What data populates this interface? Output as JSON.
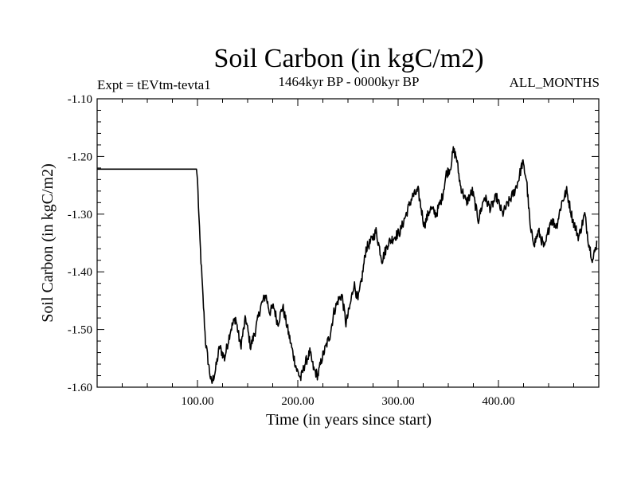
{
  "chart_data": {
    "type": "line",
    "title": "Soil Carbon (in kgC/m2)",
    "experiment": "Expt = tEVtm-tevta1",
    "period": "1464kyr BP - 0000kyr BP",
    "season": "ALL_MONTHS",
    "xlabel": "Time (in years since start)",
    "ylabel": "Soil Carbon (in kgC/m2)",
    "xlim": [
      0,
      500
    ],
    "ylim": [
      -1.6,
      -1.1
    ],
    "xticks_major": [
      100,
      200,
      300,
      400
    ],
    "xtick_labels": [
      "100.00",
      "200.00",
      "300.00",
      "400.00"
    ],
    "yticks_major": [
      -1.6,
      -1.5,
      -1.4,
      -1.3,
      -1.2,
      -1.1
    ],
    "ytick_labels": [
      "-1.60",
      "-1.50",
      "-1.40",
      "-1.30",
      "-1.20",
      "-1.10"
    ],
    "grid": false,
    "series": [
      {
        "name": "Soil Carbon",
        "color": "#000000",
        "x": [
          0,
          99,
          100,
          102,
          105,
          108,
          111,
          114,
          118,
          122,
          127,
          133,
          138,
          143,
          148,
          153,
          158,
          163,
          168,
          172,
          176,
          180,
          185,
          190,
          195,
          199,
          203,
          207,
          212,
          216,
          220,
          224,
          228,
          232,
          236,
          240,
          244,
          248,
          252,
          256,
          260,
          264,
          268,
          272,
          278,
          284,
          290,
          296,
          302,
          308,
          314,
          320,
          326,
          332,
          338,
          344,
          348,
          352,
          355,
          358,
          362,
          368,
          374,
          380,
          386,
          392,
          398,
          404,
          410,
          416,
          420,
          424,
          428,
          432,
          436,
          440,
          446,
          452,
          458,
          463,
          468,
          474,
          480,
          486,
          490,
          494,
          498
        ],
        "y": [
          -1.222,
          -1.222,
          -1.24,
          -1.33,
          -1.43,
          -1.52,
          -1.56,
          -1.595,
          -1.57,
          -1.53,
          -1.55,
          -1.5,
          -1.48,
          -1.53,
          -1.48,
          -1.53,
          -1.5,
          -1.46,
          -1.44,
          -1.47,
          -1.46,
          -1.49,
          -1.46,
          -1.5,
          -1.54,
          -1.57,
          -1.585,
          -1.56,
          -1.54,
          -1.57,
          -1.58,
          -1.55,
          -1.53,
          -1.51,
          -1.47,
          -1.45,
          -1.44,
          -1.49,
          -1.46,
          -1.42,
          -1.45,
          -1.41,
          -1.36,
          -1.35,
          -1.33,
          -1.38,
          -1.35,
          -1.34,
          -1.33,
          -1.3,
          -1.27,
          -1.26,
          -1.32,
          -1.29,
          -1.3,
          -1.27,
          -1.23,
          -1.22,
          -1.19,
          -1.2,
          -1.25,
          -1.28,
          -1.26,
          -1.31,
          -1.27,
          -1.29,
          -1.27,
          -1.3,
          -1.28,
          -1.26,
          -1.24,
          -1.21,
          -1.24,
          -1.33,
          -1.35,
          -1.33,
          -1.36,
          -1.31,
          -1.32,
          -1.28,
          -1.26,
          -1.31,
          -1.34,
          -1.3,
          -1.35,
          -1.38,
          -1.35
        ]
      }
    ]
  }
}
